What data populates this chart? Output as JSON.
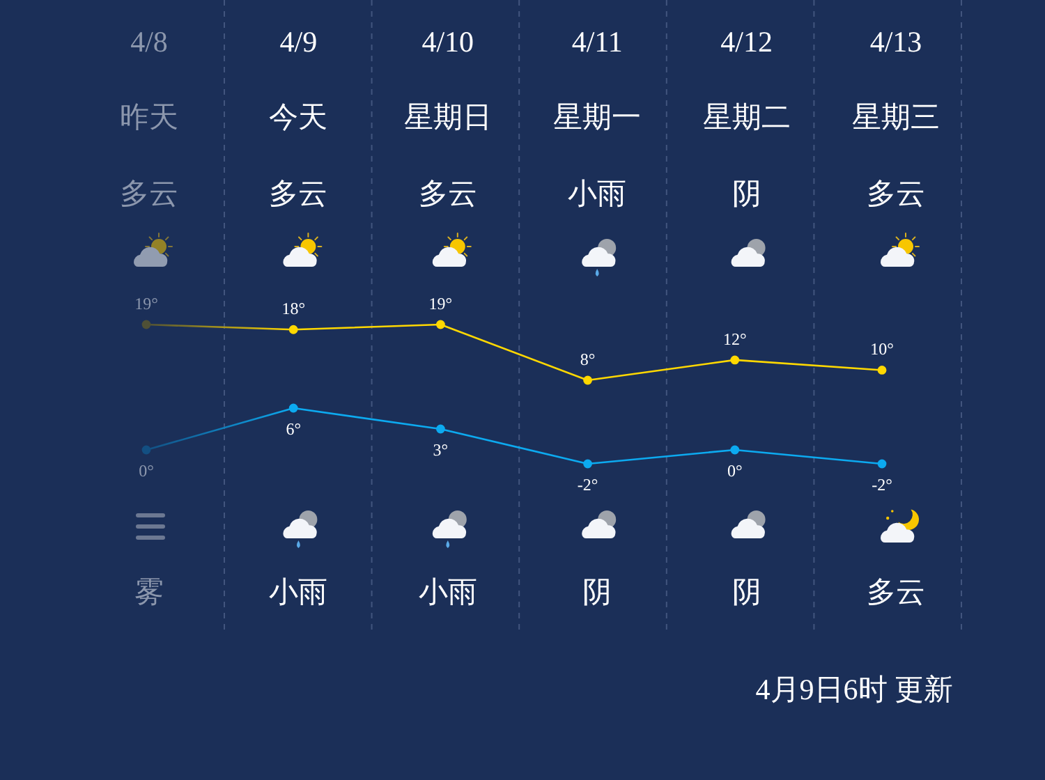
{
  "chart_data": [
    {
      "type": "line",
      "categories": [
        "4/8",
        "4/9",
        "4/10",
        "4/11",
        "4/12",
        "4/13"
      ],
      "series": [
        {
          "color": "#ffd800",
          "colors": [
            "#4f5036",
            "#ffd800",
            "#ffd800",
            "#ffd800",
            "#ffd800",
            "#ffd800"
          ],
          "values": [
            19,
            18,
            19,
            8,
            12,
            10
          ],
          "value_labels": [
            "19°",
            "18°",
            "19°",
            "8°",
            "12°",
            "10°"
          ]
        }
      ],
      "marker": "circle",
      "grid": "x",
      "annotations": [
        "昨天",
        "多云",
        "雾",
        "今天",
        "多云",
        "小雨",
        "星期日",
        "多云",
        "小雨",
        "星期一",
        "小雨",
        "阴",
        "星期二",
        "阴",
        "阴",
        "星期三",
        "多云",
        "多云",
        "4月9日6时 更新"
      ]
    },
    {
      "type": "line",
      "categories": [
        "4/8",
        "4/9",
        "4/10",
        "4/11",
        "4/12",
        "4/13"
      ],
      "series": [
        {
          "color": "#0caaf0",
          "colors": [
            "#134f82",
            "#0caaf0",
            "#0caaf0",
            "#0caaf0",
            "#0caaf0",
            "#0caaf0"
          ],
          "values": [
            0,
            6,
            3,
            -2,
            0,
            -2
          ],
          "value_labels": [
            "0°",
            "6°",
            "3°",
            "-2°",
            "0°",
            "-2°"
          ]
        }
      ],
      "marker": "circle",
      "tick_labels": false
    }
  ]
}
